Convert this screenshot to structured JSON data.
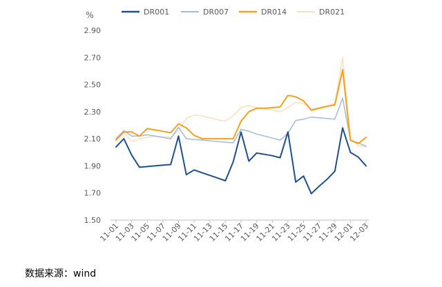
{
  "source": "数据来源：wind",
  "chart_data": {
    "type": "line",
    "yunit": "%",
    "ylim": [
      1.5,
      2.9
    ],
    "yticks": [
      1.5,
      1.7,
      1.9,
      2.1,
      2.3,
      2.5,
      2.7,
      2.9
    ],
    "ytick_labels": [
      "1.50",
      "1.70",
      "1.90",
      "2.10",
      "2.30",
      "2.50",
      "2.70",
      "2.90"
    ],
    "x": [
      "11-01",
      "11-02",
      "11-03",
      "11-04",
      "11-05",
      "11-06",
      "11-07",
      "11-08",
      "11-09",
      "11-10",
      "11-11",
      "11-12",
      "11-13",
      "11-14",
      "11-15",
      "11-16",
      "11-17",
      "11-18",
      "11-19",
      "11-20",
      "11-21",
      "11-22",
      "11-23",
      "11-24",
      "11-25",
      "11-26",
      "11-27",
      "11-28",
      "11-29",
      "11-30",
      "12-01",
      "12-02",
      "12-03"
    ],
    "xtick_labels": [
      "11-01",
      "11-03",
      "11-05",
      "11-07",
      "11-09",
      "11-11",
      "11-13",
      "11-15",
      "11-17",
      "11-19",
      "11-21",
      "11-23",
      "11-25",
      "11-27",
      "11-29",
      "12-01",
      "12-03"
    ],
    "legend_position": "top",
    "grid": false,
    "series": [
      {
        "name": "DR001",
        "color": "#1f4e8c",
        "width": 2,
        "values": [
          2.04,
          2.1,
          1.98,
          1.89,
          1.895,
          1.9,
          1.905,
          1.91,
          2.12,
          1.835,
          1.87,
          1.85,
          1.83,
          1.81,
          1.79,
          1.93,
          2.15,
          1.935,
          1.995,
          1.985,
          1.975,
          1.96,
          2.15,
          1.78,
          1.825,
          1.695,
          1.75,
          1.8,
          1.86,
          2.18,
          2.0,
          1.965,
          1.9
        ]
      },
      {
        "name": "DR007",
        "color": "#a6b9da",
        "width": 1.5,
        "values": [
          2.1,
          2.16,
          2.12,
          2.12,
          2.13,
          2.12,
          2.11,
          2.1,
          2.185,
          2.1,
          2.095,
          2.09,
          2.085,
          2.08,
          2.075,
          2.07,
          2.17,
          2.155,
          2.135,
          2.12,
          2.105,
          2.09,
          2.14,
          2.235,
          2.245,
          2.26,
          2.255,
          2.25,
          2.245,
          2.4,
          2.09,
          2.07,
          2.045
        ]
      },
      {
        "name": "DR014",
        "color": "#f5a01a",
        "width": 2,
        "values": [
          2.09,
          2.15,
          2.15,
          2.12,
          2.175,
          2.165,
          2.155,
          2.145,
          2.21,
          2.18,
          2.125,
          2.1,
          2.1,
          2.1,
          2.1,
          2.1,
          2.23,
          2.3,
          2.325,
          2.325,
          2.33,
          2.335,
          2.42,
          2.41,
          2.38,
          2.31,
          2.325,
          2.34,
          2.35,
          2.61,
          2.09,
          2.065,
          2.11
        ]
      },
      {
        "name": "DR021",
        "color": "#fbe0c0",
        "width": 1.5,
        "values": [
          2.11,
          2.15,
          2.08,
          2.1,
          2.11,
          2.12,
          2.115,
          2.11,
          2.16,
          2.25,
          2.275,
          2.27,
          2.255,
          2.24,
          2.23,
          2.27,
          2.33,
          2.345,
          2.33,
          2.32,
          2.31,
          2.3,
          2.33,
          2.37,
          2.36,
          2.32,
          2.33,
          2.34,
          2.36,
          2.7,
          2.1,
          2.05,
          2.04
        ]
      }
    ]
  }
}
